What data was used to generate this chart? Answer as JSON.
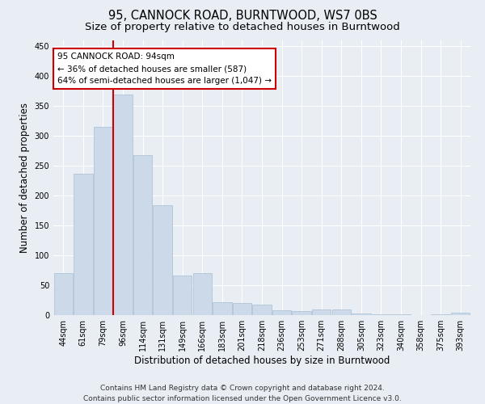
{
  "title": "95, CANNOCK ROAD, BURNTWOOD, WS7 0BS",
  "subtitle": "Size of property relative to detached houses in Burntwood",
  "xlabel": "Distribution of detached houses by size in Burntwood",
  "ylabel": "Number of detached properties",
  "footer_line1": "Contains HM Land Registry data © Crown copyright and database right 2024.",
  "footer_line2": "Contains public sector information licensed under the Open Government Licence v3.0.",
  "annotation_title": "95 CANNOCK ROAD: 94sqm",
  "annotation_line2": "← 36% of detached houses are smaller (587)",
  "annotation_line3": "64% of semi-detached houses are larger (1,047) →",
  "bar_color": "#ccd9e8",
  "bar_edge_color": "#a8bfd4",
  "marker_line_color": "#cc0000",
  "categories": [
    "44sqm",
    "61sqm",
    "79sqm",
    "96sqm",
    "114sqm",
    "131sqm",
    "149sqm",
    "166sqm",
    "183sqm",
    "201sqm",
    "218sqm",
    "236sqm",
    "253sqm",
    "271sqm",
    "288sqm",
    "305sqm",
    "323sqm",
    "340sqm",
    "358sqm",
    "375sqm",
    "393sqm"
  ],
  "values": [
    70,
    237,
    315,
    370,
    268,
    184,
    66,
    70,
    22,
    20,
    17,
    8,
    7,
    10,
    10,
    3,
    2,
    2,
    0,
    1,
    4
  ],
  "ylim": [
    0,
    460
  ],
  "yticks": [
    0,
    50,
    100,
    150,
    200,
    250,
    300,
    350,
    400,
    450
  ],
  "background_color": "#e8eef4",
  "plot_bg_color": "#e8eef4",
  "grid_color": "#ffffff",
  "annotation_box_color": "#ffffff",
  "annotation_box_edge": "#cc0000",
  "title_fontsize": 10.5,
  "subtitle_fontsize": 9.5,
  "axis_label_fontsize": 8.5,
  "tick_fontsize": 7,
  "footer_fontsize": 6.5,
  "annotation_fontsize": 7.5,
  "marker_bar_index": 3
}
